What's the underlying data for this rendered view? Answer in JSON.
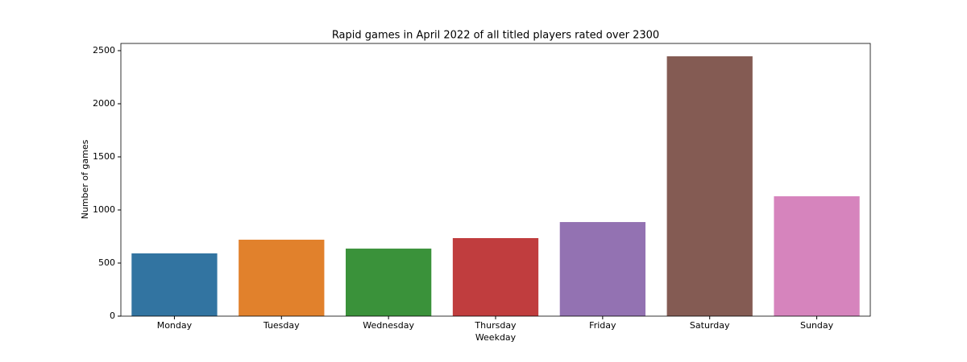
{
  "chart_data": {
    "type": "bar",
    "title": "Rapid games in April 2022 of all titled players rated over 2300",
    "x_label": "Weekday",
    "y_label": "Number of games",
    "categories": [
      "Monday",
      "Tuesday",
      "Wednesday",
      "Thursday",
      "Friday",
      "Saturday",
      "Sunday"
    ],
    "values": [
      591,
      720,
      636,
      735,
      886,
      2447,
      1129
    ],
    "colors": [
      "#3274a1",
      "#e1812c",
      "#3a923a",
      "#c03d3e",
      "#9372b2",
      "#845b53",
      "#d684bd"
    ],
    "ylim": [
      0,
      2568
    ],
    "yticks": [
      0,
      500,
      1000,
      1500,
      2000,
      2500
    ],
    "grid": false
  }
}
